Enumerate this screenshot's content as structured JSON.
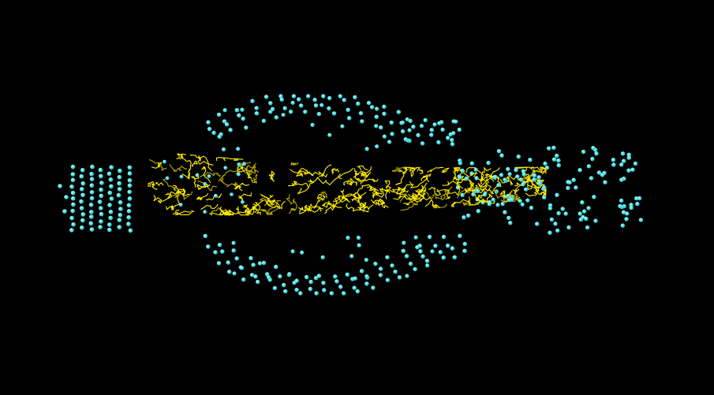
{
  "scene": {
    "background_color": "#000000",
    "atom_color": "#20c8cc",
    "atom_highlight_color": "#a8fbff",
    "chain_color": "#ffee00",
    "chain_shadow_color": "#b8a800"
  }
}
